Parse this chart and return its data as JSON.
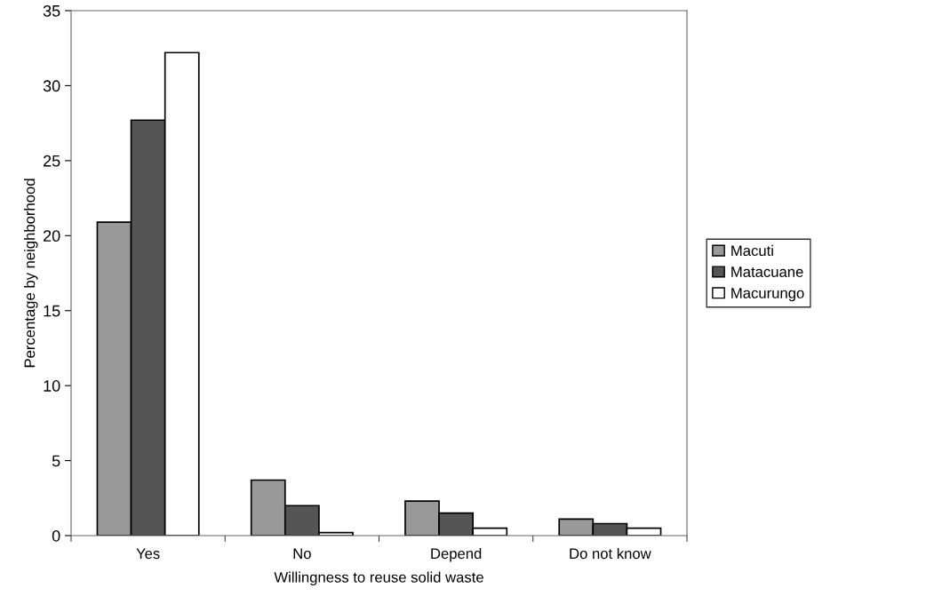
{
  "chart_data": {
    "type": "bar",
    "xlabel": "Willingness to reuse solid waste",
    "ylabel": "Percentage by neighborhood",
    "categories": [
      "Yes",
      "No",
      "Depend",
      "Do not know"
    ],
    "series": [
      {
        "name": "Macuti",
        "color": "#999999",
        "values": [
          20.9,
          3.7,
          2.3,
          1.1
        ]
      },
      {
        "name": "Matacuane",
        "color": "#555555",
        "values": [
          27.7,
          2.0,
          1.5,
          0.8
        ]
      },
      {
        "name": "Macurungo",
        "color": "#ffffff",
        "values": [
          32.2,
          0.2,
          0.5,
          0.5
        ]
      }
    ],
    "ylim": [
      0,
      35
    ],
    "yticks": [
      0,
      5,
      10,
      15,
      20,
      25,
      30,
      35
    ],
    "grid": false,
    "legend": "right"
  }
}
